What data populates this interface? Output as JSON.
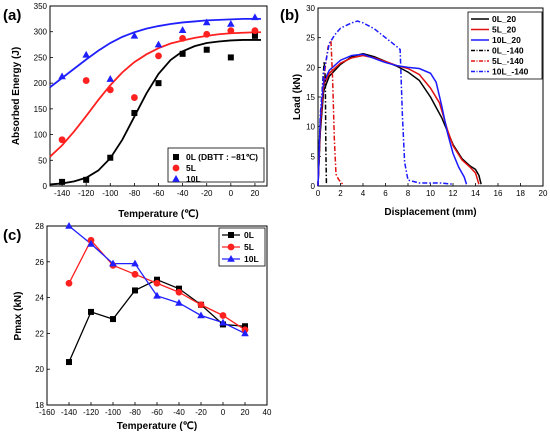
{
  "chart_data": [
    {
      "panel": "(a)",
      "type": "scatter",
      "xlabel": "Temperature (℃)",
      "ylabel": "Absorbed Energy (J)",
      "xlim": [
        -150,
        30
      ],
      "ylim": [
        0,
        350
      ],
      "xticks": [
        "-140",
        "-120",
        "-100",
        "-80",
        "-60",
        "-40",
        "-20",
        "0",
        "20"
      ],
      "yticks": [
        "0",
        "50",
        "100",
        "150",
        "200",
        "250",
        "300",
        "350"
      ],
      "legend_position": "bottom-right",
      "series": [
        {
          "name": "0L (DBTT : −81℃)",
          "color": "#000000",
          "marker": "square",
          "points": [
            [
              -140,
              8
            ],
            [
              -120,
              12
            ],
            [
              -100,
              55
            ],
            [
              -80,
              142
            ],
            [
              -60,
              200
            ],
            [
              -40,
              257
            ],
            [
              -20,
              265
            ],
            [
              0,
              250
            ],
            [
              20,
              292
            ]
          ],
          "fit": [
            [
              -150,
              3
            ],
            [
              -140,
              5
            ],
            [
              -130,
              9
            ],
            [
              -120,
              16
            ],
            [
              -110,
              30
            ],
            [
              -100,
              54
            ],
            [
              -90,
              90
            ],
            [
              -80,
              135
            ],
            [
              -70,
              180
            ],
            [
              -60,
              218
            ],
            [
              -50,
              245
            ],
            [
              -40,
              262
            ],
            [
              -30,
              272
            ],
            [
              -20,
              278
            ],
            [
              -10,
              281
            ],
            [
              0,
              283
            ],
            [
              10,
              284
            ],
            [
              20,
              284
            ],
            [
              25,
              284
            ]
          ]
        },
        {
          "name": "5L",
          "color": "#ff2020",
          "marker": "circle",
          "points": [
            [
              -140,
              90
            ],
            [
              -120,
              205
            ],
            [
              -100,
              187
            ],
            [
              -80,
              172
            ],
            [
              -60,
              253
            ],
            [
              -40,
              287
            ],
            [
              -20,
              295
            ],
            [
              0,
              302
            ],
            [
              20,
              302
            ]
          ],
          "fit": [
            [
              -150,
              57
            ],
            [
              -140,
              79
            ],
            [
              -130,
              106
            ],
            [
              -120,
              136
            ],
            [
              -110,
              167
            ],
            [
              -100,
              196
            ],
            [
              -90,
              221
            ],
            [
              -80,
              241
            ],
            [
              -70,
              256
            ],
            [
              -60,
              268
            ],
            [
              -50,
              277
            ],
            [
              -40,
              283
            ],
            [
              -30,
              288
            ],
            [
              -20,
              292
            ],
            [
              -10,
              295
            ],
            [
              0,
              297
            ],
            [
              10,
              298
            ],
            [
              20,
              299
            ],
            [
              25,
              299
            ]
          ]
        },
        {
          "name": "10L",
          "color": "#2020ff",
          "marker": "triangle",
          "points": [
            [
              -140,
              213
            ],
            [
              -120,
              255
            ],
            [
              -100,
              208
            ],
            [
              -80,
              292
            ],
            [
              -60,
              275
            ],
            [
              -40,
              303
            ],
            [
              -20,
              318
            ],
            [
              0,
              315
            ],
            [
              20,
              328
            ]
          ],
          "fit": [
            [
              -150,
              192
            ],
            [
              -140,
              210
            ],
            [
              -130,
              228
            ],
            [
              -120,
              246
            ],
            [
              -110,
              263
            ],
            [
              -100,
              278
            ],
            [
              -90,
              290
            ],
            [
              -80,
              299
            ],
            [
              -70,
              306
            ],
            [
              -60,
              311
            ],
            [
              -50,
              315
            ],
            [
              -40,
              318
            ],
            [
              -30,
              320
            ],
            [
              -20,
              322
            ],
            [
              -10,
              323
            ],
            [
              0,
              324
            ],
            [
              10,
              325
            ],
            [
              20,
              325
            ],
            [
              25,
              325
            ]
          ]
        }
      ]
    },
    {
      "panel": "(b)",
      "type": "line",
      "xlabel": "Displacement (mm)",
      "ylabel": "Load (kN)",
      "xlim": [
        0,
        20
      ],
      "ylim": [
        0,
        30
      ],
      "xticks": [
        "0",
        "2",
        "4",
        "6",
        "8",
        "10",
        "12",
        "14",
        "16",
        "18",
        "20"
      ],
      "yticks": [
        "0",
        "5",
        "10",
        "15",
        "20",
        "25",
        "30"
      ],
      "legend_position": "top-right",
      "series": [
        {
          "name": "0L_20",
          "color": "#000000",
          "dash": "solid",
          "points": [
            [
              0,
              0
            ],
            [
              0.2,
              9
            ],
            [
              0.5,
              16
            ],
            [
              1,
              18.5
            ],
            [
              2,
              20.5
            ],
            [
              3,
              21.8
            ],
            [
              4,
              22.3
            ],
            [
              5,
              21.8
            ],
            [
              6,
              21
            ],
            [
              7,
              20.2
            ],
            [
              8,
              19.2
            ],
            [
              9,
              17.8
            ],
            [
              10,
              15
            ],
            [
              11,
              11.5
            ],
            [
              12,
              7
            ],
            [
              12.8,
              4.6
            ],
            [
              13.5,
              3.4
            ],
            [
              14,
              2.8
            ],
            [
              14.3,
              1.8
            ],
            [
              14.5,
              0.3
            ]
          ]
        },
        {
          "name": "5L_20",
          "color": "#e01010",
          "dash": "solid",
          "points": [
            [
              0,
              0
            ],
            [
              0.2,
              10
            ],
            [
              0.5,
              17
            ],
            [
              1,
              19
            ],
            [
              2,
              20.7
            ],
            [
              3,
              21.6
            ],
            [
              4,
              22
            ],
            [
              5,
              21.6
            ],
            [
              6,
              21
            ],
            [
              7,
              20.3
            ],
            [
              8,
              19.8
            ],
            [
              9,
              18.8
            ],
            [
              10,
              16.5
            ],
            [
              10.8,
              14
            ],
            [
              11.5,
              9.5
            ],
            [
              12,
              6.8
            ],
            [
              12.8,
              4.4
            ],
            [
              13.5,
              3.2
            ],
            [
              14,
              2.2
            ],
            [
              14.3,
              0.3
            ]
          ]
        },
        {
          "name": "10L_20",
          "color": "#1a1aff",
          "dash": "solid",
          "points": [
            [
              0,
              0
            ],
            [
              0.2,
              11
            ],
            [
              0.5,
              17.5
            ],
            [
              1,
              19.5
            ],
            [
              2,
              21.2
            ],
            [
              3,
              22
            ],
            [
              4,
              22.2
            ],
            [
              5,
              21.5
            ],
            [
              6,
              20.8
            ],
            [
              7,
              20.3
            ],
            [
              8,
              20
            ],
            [
              9,
              19.8
            ],
            [
              10,
              19
            ],
            [
              10.5,
              17.5
            ],
            [
              11,
              13.5
            ],
            [
              11.5,
              9
            ],
            [
              12,
              5.5
            ],
            [
              12.5,
              3.2
            ],
            [
              13,
              1.5
            ],
            [
              13.2,
              0.3
            ]
          ]
        },
        {
          "name": "0L_-140",
          "color": "#000000",
          "dash": "dashdot",
          "points": [
            [
              0,
              0
            ],
            [
              0.2,
              10
            ],
            [
              0.4,
              17
            ],
            [
              0.55,
              21
            ],
            [
              0.65,
              18
            ],
            [
              0.7,
              6
            ],
            [
              0.75,
              0.2
            ]
          ]
        },
        {
          "name": "5L_-140",
          "color": "#e01010",
          "dash": "dashdot",
          "points": [
            [
              0,
              0
            ],
            [
              0.2,
              10
            ],
            [
              0.5,
              18
            ],
            [
              0.9,
              23.5
            ],
            [
              1.15,
              24.5
            ],
            [
              1.3,
              18
            ],
            [
              1.45,
              8
            ],
            [
              1.6,
              2
            ],
            [
              1.8,
              1.2
            ],
            [
              2,
              0.7
            ],
            [
              2.2,
              0.3
            ]
          ]
        },
        {
          "name": "10L_-140",
          "color": "#1a1aff",
          "dash": "dashdot",
          "points": [
            [
              0,
              0
            ],
            [
              0.2,
              12
            ],
            [
              0.5,
              19
            ],
            [
              1,
              24
            ],
            [
              1.5,
              25.5
            ],
            [
              2,
              26.6
            ],
            [
              3,
              27.5
            ],
            [
              3.5,
              27.8
            ],
            [
              4,
              27.5
            ],
            [
              5,
              26.5
            ],
            [
              6,
              25
            ],
            [
              7,
              23.5
            ],
            [
              7.3,
              23
            ],
            [
              7.5,
              12
            ],
            [
              7.7,
              4
            ],
            [
              8,
              1
            ],
            [
              9,
              0.5
            ],
            [
              10,
              0.5
            ],
            [
              11,
              0.5
            ],
            [
              12,
              0.3
            ]
          ]
        }
      ]
    },
    {
      "panel": "(c)",
      "type": "line",
      "xlabel": "Temperature (℃)",
      "ylabel": "Pmax (kN)",
      "xlim": [
        -160,
        40
      ],
      "ylim": [
        18,
        28
      ],
      "xticks": [
        "-160",
        "-140",
        "-120",
        "-100",
        "-80",
        "-60",
        "-40",
        "-20",
        "0",
        "20",
        "40"
      ],
      "yticks": [
        "18",
        "20",
        "22",
        "24",
        "26",
        "28"
      ],
      "legend_position": "top-right",
      "categories_x": [
        -140,
        -120,
        -100,
        -80,
        -60,
        -40,
        -20,
        0,
        20
      ],
      "series": [
        {
          "name": "0L",
          "color": "#000000",
          "marker": "square",
          "values": [
            20.4,
            23.2,
            22.8,
            24.4,
            25.0,
            24.5,
            23.6,
            22.5,
            22.4
          ]
        },
        {
          "name": "5L",
          "color": "#ff2020",
          "marker": "circle",
          "values": [
            24.8,
            27.2,
            25.8,
            25.3,
            24.8,
            24.3,
            23.6,
            23.0,
            22.2
          ]
        },
        {
          "name": "10L",
          "color": "#2020ff",
          "marker": "triangle",
          "values": [
            28.0,
            27.0,
            25.9,
            25.9,
            24.1,
            23.7,
            23.0,
            22.6,
            22.0
          ]
        }
      ]
    }
  ]
}
